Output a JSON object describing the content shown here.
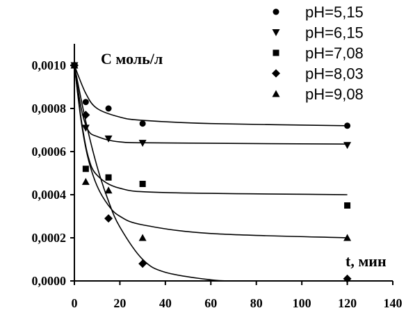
{
  "chart_data": {
    "type": "scatter",
    "ylabel": "С моль/л",
    "xlabel": "t, мин",
    "xlim": [
      0,
      140
    ],
    "ylim": [
      0,
      0.0011
    ],
    "x_ticks": [
      "0",
      "20",
      "40",
      "60",
      "80",
      "100",
      "120",
      "140"
    ],
    "y_ticks": [
      "0,0000",
      "0,0002",
      "0,0004",
      "0,0006",
      "0,0008",
      "0,0010"
    ],
    "x_tick_values": [
      0,
      20,
      40,
      60,
      80,
      100,
      120,
      140
    ],
    "y_tick_values": [
      0,
      0.0002,
      0.0004,
      0.0006,
      0.0008,
      0.001
    ],
    "legend_position": "top-right",
    "series": [
      {
        "name": "pH=5,15",
        "marker": "circle",
        "x": [
          0,
          5,
          15,
          30,
          120
        ],
        "y": [
          0.001,
          0.00083,
          0.0008,
          0.00073,
          0.00072
        ],
        "fit": [
          [
            0,
            0.001
          ],
          [
            5,
            0.00087
          ],
          [
            10,
            0.0008
          ],
          [
            20,
            0.00076
          ],
          [
            30,
            0.000745
          ],
          [
            60,
            0.00073
          ],
          [
            120,
            0.00072
          ]
        ]
      },
      {
        "name": "pH=6,15",
        "marker": "triangle-down",
        "x": [
          0,
          5,
          15,
          30,
          120
        ],
        "y": [
          0.001,
          0.00071,
          0.00066,
          0.00064,
          0.00063
        ],
        "fit": [
          [
            0,
            0.001
          ],
          [
            3,
            0.0008
          ],
          [
            6,
            0.0007
          ],
          [
            10,
            0.00067
          ],
          [
            20,
            0.000645
          ],
          [
            40,
            0.00064
          ],
          [
            120,
            0.000635
          ]
        ]
      },
      {
        "name": "pH=7,08",
        "marker": "square",
        "x": [
          0,
          5,
          15,
          30,
          120
        ],
        "y": [
          0.001,
          0.00052,
          0.00048,
          0.00045,
          0.00035
        ],
        "fit": [
          [
            0,
            0.001
          ],
          [
            3,
            0.00075
          ],
          [
            6,
            0.00058
          ],
          [
            10,
            0.00049
          ],
          [
            20,
            0.00043
          ],
          [
            40,
            0.00041
          ],
          [
            120,
            0.0004
          ]
        ]
      },
      {
        "name": "pH=8,03",
        "marker": "diamond",
        "x": [
          0,
          5,
          15,
          30,
          120
        ],
        "y": [
          0.001,
          0.00077,
          0.00029,
          8e-05,
          1e-05
        ],
        "fit": [
          [
            0,
            0.001
          ],
          [
            5,
            0.00074
          ],
          [
            10,
            0.00053
          ],
          [
            15,
            0.00037
          ],
          [
            20,
            0.00025
          ],
          [
            30,
            0.0001
          ],
          [
            40,
            4e-05
          ],
          [
            60,
            5e-06
          ],
          [
            70,
            0.0
          ]
        ]
      },
      {
        "name": "pH=9,08",
        "marker": "triangle-up",
        "x": [
          0,
          5,
          15,
          30,
          120
        ],
        "y": [
          0.001,
          0.00046,
          0.00042,
          0.0002,
          0.0002
        ],
        "fit": [
          [
            0,
            0.001
          ],
          [
            3,
            0.00074
          ],
          [
            6,
            0.00057
          ],
          [
            10,
            0.00044
          ],
          [
            15,
            0.00035
          ],
          [
            20,
            0.0003
          ],
          [
            30,
            0.00026
          ],
          [
            60,
            0.00022
          ],
          [
            120,
            0.0002
          ]
        ]
      }
    ]
  }
}
